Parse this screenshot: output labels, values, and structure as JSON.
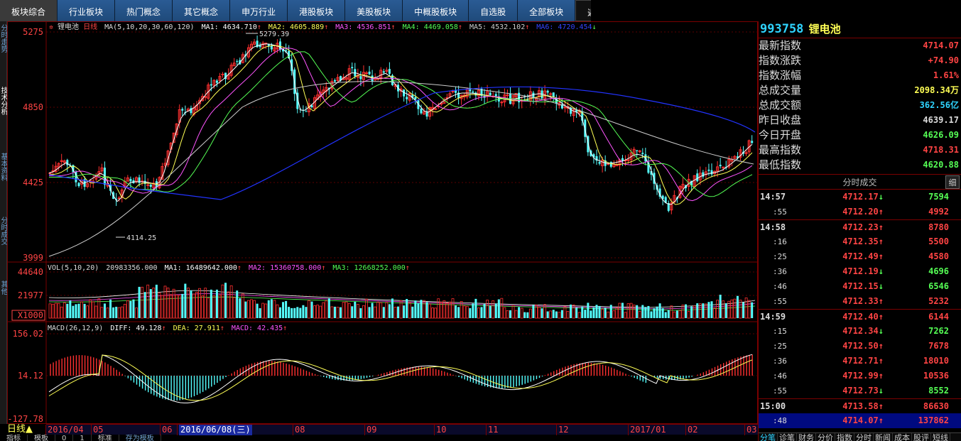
{
  "nav": {
    "tabs": [
      "板块综合",
      "行业板块",
      "热门概念",
      "其它概念",
      "申万行业",
      "港股板块",
      "美股板块",
      "中概股板块",
      "自选股",
      "全部板块"
    ],
    "back": "返回"
  },
  "left_strip": [
    "分时走势",
    "技术分析",
    "基本资料",
    "分时成交",
    "其他"
  ],
  "chart": {
    "stock_name": "锂电池",
    "period": "日线",
    "ma_header": {
      "params": "MA(5,10,20,30,60,120)",
      "items": [
        {
          "label": "MA1: 4634.710",
          "color": "#ffffff"
        },
        {
          "label": "MA2: 4605.889",
          "color": "#ffff55"
        },
        {
          "label": "MA3: 4536.851",
          "color": "#ff55ff"
        },
        {
          "label": "MA4: 4469.058",
          "color": "#55ff55"
        },
        {
          "label": "MA5: 4532.102",
          "color": "#cccccc"
        },
        {
          "label": "MA6: 4720.454",
          "color": "#3344ff"
        }
      ]
    },
    "price_axis": [
      "5275",
      "4850",
      "4425",
      "3999"
    ],
    "high_label": "5279.39",
    "low_label": "4114.25",
    "vol_header": {
      "params": "VOL(5,10,20)",
      "value": "20983356.000",
      "items": [
        {
          "label": "MA1: 16489642.000",
          "color": "#ffffff"
        },
        {
          "label": "MA2: 15360758.000",
          "color": "#ff55ff"
        },
        {
          "label": "MA3: 12668252.000",
          "color": "#55ff55"
        }
      ]
    },
    "vol_axis": [
      "44640",
      "21977"
    ],
    "vol_unit": "X1000",
    "macd_header": {
      "params": "MACD(26,12,9)",
      "items": [
        {
          "label": "DIFF: 49.128",
          "color": "#ffffff"
        },
        {
          "label": "DEA: 27.911",
          "color": "#ffff55"
        },
        {
          "label": "MACD: 42.435",
          "color": "#ff55ff"
        }
      ]
    },
    "macd_axis": [
      "156.02",
      "14.12",
      "-127.78"
    ],
    "date_axis": [
      "2016/04",
      "05",
      "06",
      "2016/06/08(三)",
      "08",
      "09",
      "10",
      "11",
      "12",
      "2017/01",
      "02",
      "03"
    ]
  },
  "quote": {
    "code": "993758",
    "name": "锂电池",
    "stats": [
      {
        "label": "最新指数",
        "value": "4714.07",
        "color": "#ff4444"
      },
      {
        "label": "指数涨跌",
        "value": "+74.90",
        "color": "#ff4444"
      },
      {
        "label": "指数涨幅",
        "value": "1.61%",
        "color": "#ff4444"
      },
      {
        "label": "总成交量",
        "value": "2098.34万",
        "color": "#ffff55"
      },
      {
        "label": "总成交额",
        "value": "362.56亿",
        "color": "#2fd4ff"
      },
      {
        "label": "昨日收盘",
        "value": "4639.17",
        "color": "#dddddd"
      },
      {
        "label": "今日开盘",
        "value": "4626.09",
        "color": "#55ff55"
      },
      {
        "label": "最高指数",
        "value": "4718.31",
        "color": "#ff4444"
      },
      {
        "label": "最低指数",
        "value": "4620.88",
        "color": "#55ff55"
      }
    ],
    "ticks_title": "分时成交",
    "detail": "细",
    "ticks": [
      {
        "time": "14:57",
        "price": "4712.17",
        "dir": "down",
        "vol": "7594"
      },
      {
        "time": ":55",
        "price": "4712.20",
        "dir": "up",
        "vol": "4992"
      },
      {
        "time": "14:58",
        "price": "4712.23",
        "dir": "up",
        "vol": "8780"
      },
      {
        "time": ":16",
        "price": "4712.35",
        "dir": "up",
        "vol": "5500"
      },
      {
        "time": ":25",
        "price": "4712.49",
        "dir": "up",
        "vol": "4580"
      },
      {
        "time": ":36",
        "price": "4712.19",
        "dir": "down",
        "vol": "4696"
      },
      {
        "time": ":46",
        "price": "4712.15",
        "dir": "down",
        "vol": "6546"
      },
      {
        "time": ":55",
        "price": "4712.33",
        "dir": "up",
        "vol": "5232"
      },
      {
        "time": "14:59",
        "price": "4712.40",
        "dir": "up",
        "vol": "6144"
      },
      {
        "time": ":15",
        "price": "4712.34",
        "dir": "down",
        "vol": "7262"
      },
      {
        "time": ":25",
        "price": "4712.50",
        "dir": "up",
        "vol": "7678"
      },
      {
        "time": ":36",
        "price": "4712.71",
        "dir": "up",
        "vol": "18010"
      },
      {
        "time": ":46",
        "price": "4712.99",
        "dir": "up",
        "vol": "10536"
      },
      {
        "time": ":55",
        "price": "4712.73",
        "dir": "down",
        "vol": "8552"
      },
      {
        "time": "15:00",
        "price": "4713.58",
        "dir": "up",
        "vol": "86630"
      },
      {
        "time": ":48",
        "price": "4714.07",
        "dir": "up",
        "vol": "137862"
      }
    ],
    "bottom_tabs": [
      "分笔",
      "诊笔",
      "财务",
      "分价",
      "指数",
      "分时",
      "新闻",
      "成本",
      "股评",
      "短线"
    ]
  },
  "bottom": {
    "period_label": "日线▲",
    "tabs": [
      "指标",
      "模板",
      "0",
      "1",
      "标准",
      "存为模板"
    ]
  }
}
